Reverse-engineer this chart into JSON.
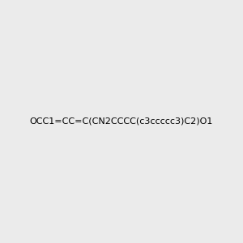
{
  "smiles": "OCC1=CC=C(CN2CCCC(c3ccccc3)C2)O1",
  "image_size": 300,
  "background_color": "#ebebeb",
  "bond_color": "#000000",
  "atom_colors": {
    "N": "#0000ff",
    "O": "#ff0000"
  },
  "title": "",
  "dpi": 100
}
